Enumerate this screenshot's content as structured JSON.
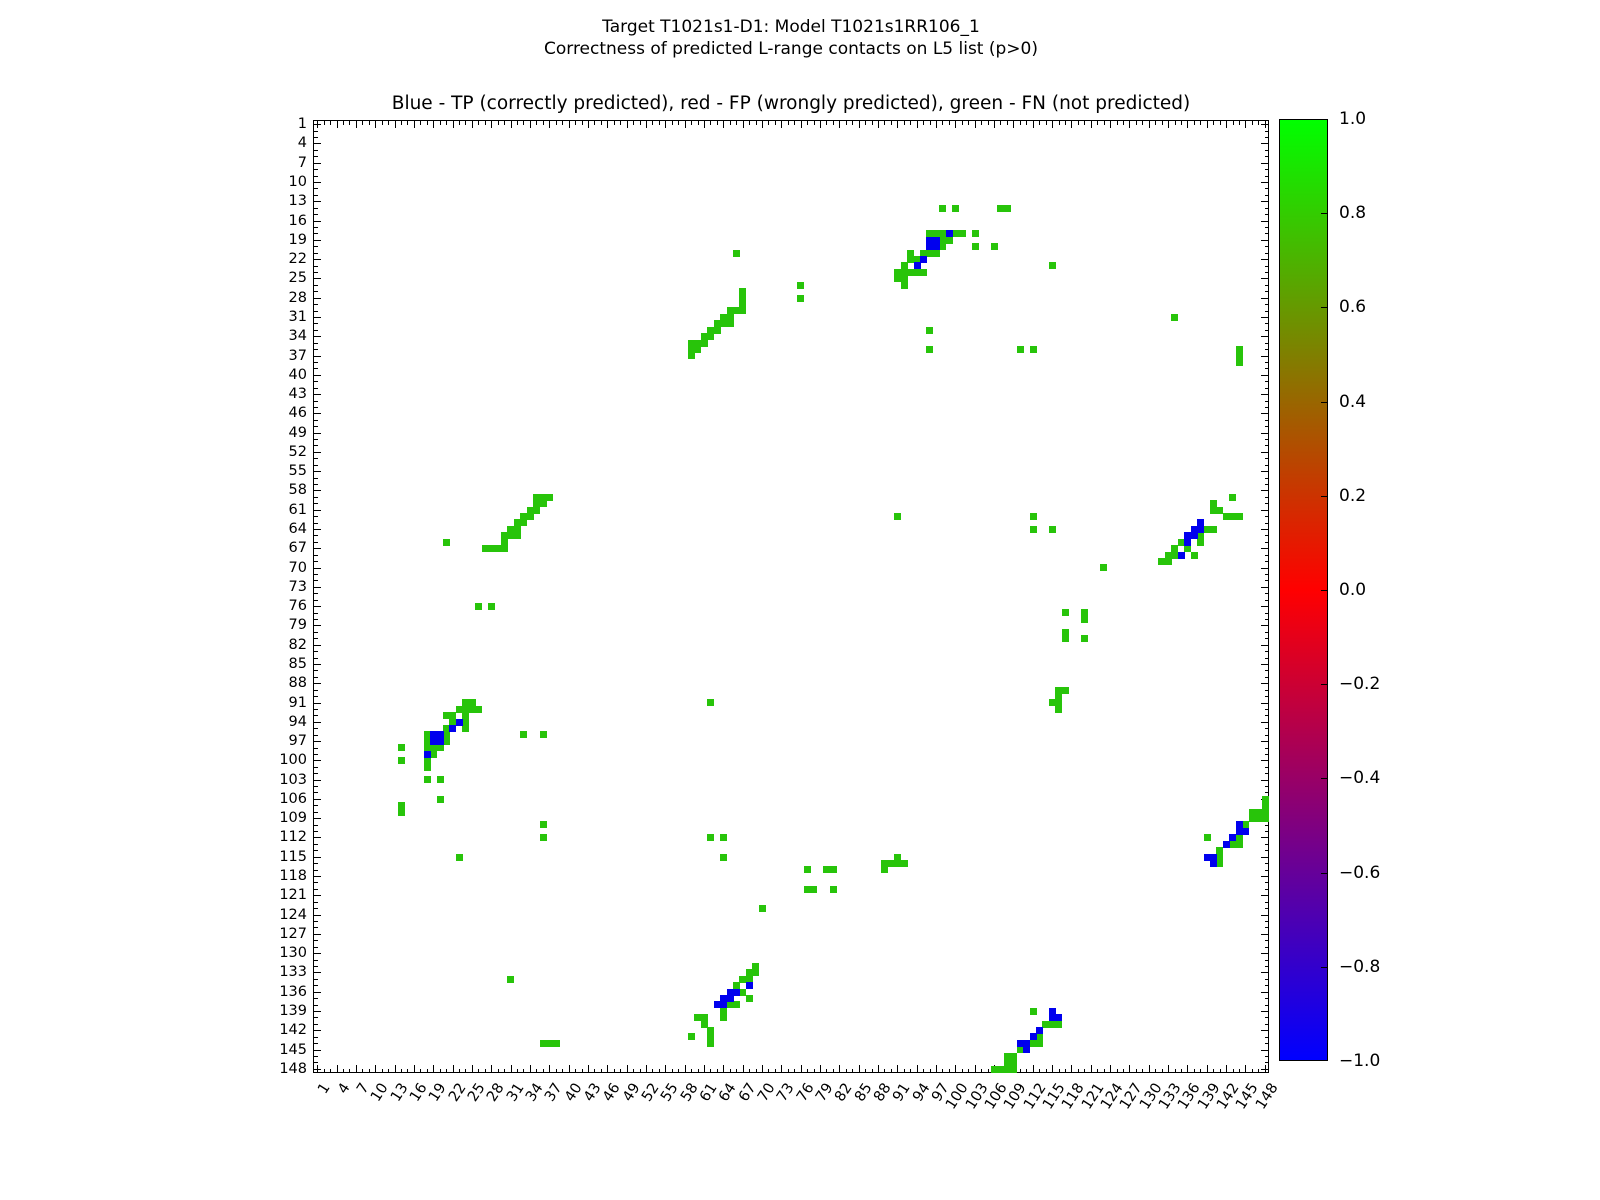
{
  "header": {
    "suptitle_line1": "Target T1021s1-D1: Model T1021s1RR106_1",
    "suptitle_line2": "Correctness of predicted L-range contacts on L5 list (p>0)",
    "axes_title": "Blue - TP (correctly predicted), red - FP (wrongly predicted), green - FN (not predicted)"
  },
  "colors": {
    "tp_blue": "#0000ee",
    "fn_green": "#28c40a",
    "fp_red": "#ff0000",
    "axis_black": "#000000",
    "colorbar_top": "#00ff00",
    "colorbar_mid": "#ff0000",
    "colorbar_bottom": "#0000ff"
  },
  "chart_data": {
    "type": "heatmap",
    "title": "Blue - TP (correctly predicted), red - FP (wrongly predicted), green - FN (not predicted)",
    "xlabel": "",
    "ylabel": "",
    "axis_range": [
      1,
      148
    ],
    "x_tick_labels": [
      1,
      4,
      7,
      10,
      13,
      16,
      19,
      22,
      25,
      28,
      31,
      34,
      37,
      40,
      43,
      46,
      49,
      52,
      55,
      58,
      61,
      64,
      67,
      70,
      73,
      76,
      79,
      82,
      85,
      88,
      91,
      94,
      97,
      100,
      103,
      106,
      109,
      112,
      115,
      118,
      121,
      124,
      127,
      130,
      133,
      136,
      139,
      142,
      145,
      148
    ],
    "y_tick_labels": [
      1,
      4,
      7,
      10,
      13,
      16,
      19,
      22,
      25,
      28,
      31,
      34,
      37,
      40,
      43,
      46,
      49,
      52,
      55,
      58,
      61,
      64,
      67,
      70,
      73,
      76,
      79,
      82,
      85,
      88,
      91,
      94,
      97,
      100,
      103,
      106,
      109,
      112,
      115,
      118,
      121,
      124,
      127,
      130,
      133,
      136,
      139,
      142,
      145,
      148
    ],
    "minor_tick_every": 1,
    "major_tick_every": 3,
    "grid": false,
    "legend_position": "none",
    "value_meaning": {
      "tp": -1.0,
      "fp": 0.0,
      "fn": 1.0
    },
    "tp_cells": [
      [
        94,
        23
      ],
      [
        95,
        22
      ],
      [
        96,
        19
      ],
      [
        96,
        20
      ],
      [
        97,
        19
      ],
      [
        97,
        20
      ],
      [
        99,
        18
      ],
      [
        23,
        94
      ],
      [
        22,
        95
      ],
      [
        19,
        96
      ],
      [
        20,
        96
      ],
      [
        19,
        97
      ],
      [
        20,
        97
      ],
      [
        18,
        99
      ],
      [
        135,
        68
      ],
      [
        136,
        65
      ],
      [
        136,
        66
      ],
      [
        137,
        64
      ],
      [
        137,
        65
      ],
      [
        138,
        63
      ],
      [
        138,
        64
      ],
      [
        68,
        135
      ],
      [
        65,
        136
      ],
      [
        66,
        136
      ],
      [
        64,
        137
      ],
      [
        65,
        137
      ],
      [
        63,
        138
      ],
      [
        64,
        138
      ],
      [
        144,
        110
      ],
      [
        144,
        111
      ],
      [
        145,
        111
      ],
      [
        143,
        112
      ],
      [
        142,
        113
      ],
      [
        139,
        115
      ],
      [
        140,
        115
      ],
      [
        140,
        116
      ],
      [
        110,
        144
      ],
      [
        111,
        144
      ],
      [
        111,
        145
      ],
      [
        112,
        143
      ],
      [
        113,
        142
      ],
      [
        115,
        139
      ],
      [
        115,
        140
      ],
      [
        116,
        140
      ]
    ],
    "fp_cells": [],
    "fn_cells": [
      [
        91,
        24
      ],
      [
        91,
        25
      ],
      [
        92,
        23
      ],
      [
        92,
        24
      ],
      [
        92,
        25
      ],
      [
        92,
        26
      ],
      [
        93,
        21
      ],
      [
        93,
        22
      ],
      [
        93,
        24
      ],
      [
        94,
        22
      ],
      [
        94,
        24
      ],
      [
        95,
        21
      ],
      [
        95,
        24
      ],
      [
        96,
        18
      ],
      [
        96,
        21
      ],
      [
        97,
        18
      ],
      [
        97,
        21
      ],
      [
        98,
        14
      ],
      [
        98,
        18
      ],
      [
        98,
        19
      ],
      [
        98,
        20
      ],
      [
        99,
        19
      ],
      [
        100,
        14
      ],
      [
        100,
        18
      ],
      [
        101,
        18
      ],
      [
        103,
        18
      ],
      [
        103,
        20
      ],
      [
        106,
        20
      ],
      [
        107,
        14
      ],
      [
        108,
        14
      ],
      [
        115,
        23
      ],
      [
        24,
        91
      ],
      [
        25,
        91
      ],
      [
        23,
        92
      ],
      [
        24,
        92
      ],
      [
        25,
        92
      ],
      [
        26,
        92
      ],
      [
        21,
        93
      ],
      [
        22,
        93
      ],
      [
        24,
        93
      ],
      [
        22,
        94
      ],
      [
        24,
        94
      ],
      [
        21,
        95
      ],
      [
        24,
        95
      ],
      [
        18,
        96
      ],
      [
        21,
        96
      ],
      [
        18,
        97
      ],
      [
        21,
        97
      ],
      [
        14,
        98
      ],
      [
        18,
        98
      ],
      [
        19,
        98
      ],
      [
        20,
        98
      ],
      [
        19,
        99
      ],
      [
        14,
        100
      ],
      [
        18,
        100
      ],
      [
        18,
        101
      ],
      [
        18,
        103
      ],
      [
        20,
        103
      ],
      [
        20,
        106
      ],
      [
        14,
        107
      ],
      [
        14,
        108
      ],
      [
        23,
        115
      ],
      [
        67,
        27
      ],
      [
        67,
        28
      ],
      [
        67,
        29
      ],
      [
        65,
        30
      ],
      [
        66,
        30
      ],
      [
        67,
        30
      ],
      [
        64,
        31
      ],
      [
        65,
        31
      ],
      [
        63,
        32
      ],
      [
        64,
        32
      ],
      [
        65,
        32
      ],
      [
        62,
        33
      ],
      [
        63,
        33
      ],
      [
        61,
        34
      ],
      [
        62,
        34
      ],
      [
        59,
        35
      ],
      [
        60,
        35
      ],
      [
        61,
        35
      ],
      [
        59,
        36
      ],
      [
        60,
        36
      ],
      [
        59,
        37
      ],
      [
        27,
        67
      ],
      [
        28,
        67
      ],
      [
        29,
        67
      ],
      [
        30,
        65
      ],
      [
        30,
        66
      ],
      [
        30,
        67
      ],
      [
        31,
        64
      ],
      [
        31,
        65
      ],
      [
        32,
        63
      ],
      [
        32,
        64
      ],
      [
        32,
        65
      ],
      [
        33,
        62
      ],
      [
        33,
        63
      ],
      [
        34,
        61
      ],
      [
        34,
        62
      ],
      [
        35,
        59
      ],
      [
        35,
        60
      ],
      [
        35,
        61
      ],
      [
        36,
        59
      ],
      [
        36,
        60
      ],
      [
        37,
        59
      ],
      [
        132,
        69
      ],
      [
        133,
        68
      ],
      [
        133,
        69
      ],
      [
        134,
        67
      ],
      [
        134,
        68
      ],
      [
        135,
        66
      ],
      [
        136,
        67
      ],
      [
        137,
        68
      ],
      [
        138,
        65
      ],
      [
        138,
        66
      ],
      [
        139,
        64
      ],
      [
        140,
        60
      ],
      [
        140,
        61
      ],
      [
        140,
        64
      ],
      [
        141,
        61
      ],
      [
        142,
        62
      ],
      [
        143,
        59
      ],
      [
        143,
        62
      ],
      [
        144,
        62
      ],
      [
        69,
        132
      ],
      [
        68,
        133
      ],
      [
        69,
        133
      ],
      [
        67,
        134
      ],
      [
        68,
        134
      ],
      [
        66,
        135
      ],
      [
        67,
        136
      ],
      [
        68,
        137
      ],
      [
        65,
        138
      ],
      [
        66,
        138
      ],
      [
        64,
        139
      ],
      [
        60,
        140
      ],
      [
        61,
        140
      ],
      [
        64,
        140
      ],
      [
        61,
        141
      ],
      [
        62,
        142
      ],
      [
        59,
        143
      ],
      [
        62,
        143
      ],
      [
        62,
        144
      ],
      [
        139,
        112
      ],
      [
        148,
        106
      ],
      [
        148,
        107
      ],
      [
        146,
        108
      ],
      [
        147,
        108
      ],
      [
        148,
        108
      ],
      [
        146,
        109
      ],
      [
        147,
        109
      ],
      [
        148,
        109
      ],
      [
        145,
        110
      ],
      [
        144,
        112
      ],
      [
        143,
        113
      ],
      [
        144,
        113
      ],
      [
        141,
        114
      ],
      [
        141,
        115
      ],
      [
        141,
        116
      ],
      [
        112,
        139
      ],
      [
        106,
        148
      ],
      [
        107,
        148
      ],
      [
        108,
        146
      ],
      [
        108,
        147
      ],
      [
        108,
        148
      ],
      [
        109,
        146
      ],
      [
        109,
        147
      ],
      [
        109,
        148
      ],
      [
        110,
        145
      ],
      [
        112,
        144
      ],
      [
        113,
        143
      ],
      [
        113,
        144
      ],
      [
        114,
        141
      ],
      [
        115,
        141
      ],
      [
        116,
        141
      ],
      [
        144,
        36
      ],
      [
        144,
        37
      ],
      [
        144,
        38
      ],
      [
        36,
        144
      ],
      [
        37,
        144
      ],
      [
        38,
        144
      ],
      [
        66,
        21
      ],
      [
        21,
        66
      ],
      [
        76,
        26
      ],
      [
        26,
        76
      ],
      [
        76,
        28
      ],
      [
        28,
        76
      ],
      [
        96,
        33
      ],
      [
        33,
        96
      ],
      [
        96,
        36
      ],
      [
        36,
        96
      ],
      [
        110,
        36
      ],
      [
        36,
        110
      ],
      [
        112,
        36
      ],
      [
        36,
        112
      ],
      [
        134,
        31
      ],
      [
        31,
        134
      ],
      [
        91,
        62
      ],
      [
        62,
        91
      ],
      [
        112,
        62
      ],
      [
        62,
        112
      ],
      [
        112,
        64
      ],
      [
        64,
        112
      ],
      [
        115,
        64
      ],
      [
        64,
        115
      ],
      [
        123,
        70
      ],
      [
        70,
        123
      ],
      [
        117,
        77
      ],
      [
        77,
        117
      ],
      [
        120,
        77
      ],
      [
        77,
        120
      ],
      [
        120,
        78
      ],
      [
        78,
        120
      ],
      [
        117,
        80
      ],
      [
        80,
        117
      ],
      [
        117,
        81
      ],
      [
        81,
        117
      ],
      [
        120,
        81
      ],
      [
        81,
        120
      ],
      [
        116,
        89
      ],
      [
        89,
        116
      ],
      [
        117,
        89
      ],
      [
        89,
        117
      ],
      [
        116,
        90
      ],
      [
        90,
        116
      ],
      [
        115,
        91
      ],
      [
        91,
        115
      ],
      [
        116,
        91
      ],
      [
        91,
        116
      ],
      [
        116,
        92
      ],
      [
        92,
        116
      ]
    ],
    "colorbar": {
      "tick_labels": [
        "1.0",
        "0.8",
        "0.6",
        "0.4",
        "0.2",
        "0.0",
        "−0.2",
        "−0.4",
        "−0.6",
        "−0.8",
        "−1.0"
      ],
      "tick_values": [
        1.0,
        0.8,
        0.6,
        0.4,
        0.2,
        0.0,
        -0.2,
        -0.4,
        -0.6,
        -0.8,
        -1.0
      ],
      "range": [
        -1.0,
        1.0
      ]
    }
  }
}
